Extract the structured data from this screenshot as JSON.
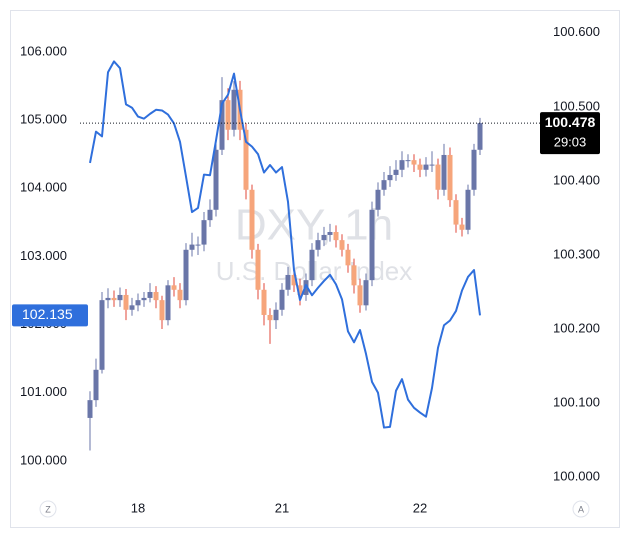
{
  "chart_data": {
    "type": "candlestick",
    "watermark": {
      "title": "DXY, 1h",
      "subtitle": "U.S. Dollar Index"
    },
    "corner_buttons": [
      "Z",
      "A"
    ],
    "grid": false,
    "categories": [
      null,
      null,
      null,
      null,
      null,
      null,
      null,
      null,
      "18",
      null,
      null,
      null,
      null,
      null,
      null,
      null,
      null,
      null,
      null,
      null,
      null,
      null,
      null,
      null,
      null,
      null,
      null,
      null,
      null,
      null,
      null,
      null,
      "21",
      null,
      null,
      null,
      null,
      null,
      null,
      null,
      null,
      null,
      null,
      null,
      null,
      null,
      null,
      null,
      null,
      null,
      null,
      null,
      null,
      null,
      null,
      "22",
      null,
      null,
      null,
      null,
      null,
      null,
      null,
      null,
      null,
      null
    ],
    "ylim": [
      99.545,
      106.584
    ],
    "yticks": [
      {
        "value": 100,
        "label": "100.000"
      },
      {
        "value": 101,
        "label": "101.000"
      },
      {
        "value": 102,
        "label": "102.000"
      },
      {
        "value": 103,
        "label": "103.000"
      },
      {
        "value": 104,
        "label": "104.000"
      },
      {
        "value": 105,
        "label": "105.000"
      },
      {
        "value": 106,
        "label": "106.000"
      }
    ],
    "y2lim": [
      99.98,
      100.628
    ],
    "y2ticks": [
      {
        "value": 100,
        "label": "100.000"
      },
      {
        "value": 100.1,
        "label": "100.100"
      },
      {
        "value": 100.2,
        "label": "100.200"
      },
      {
        "value": 100.3,
        "label": "100.300"
      },
      {
        "value": 100.4,
        "label": "100.400"
      },
      {
        "value": 100.5,
        "label": "100.500"
      },
      {
        "value": 100.6,
        "label": "100.600"
      }
    ],
    "last_price_label": {
      "value": 100.478,
      "label": "100.478"
    },
    "countdown": "29:03",
    "series": [
      {
        "type": "candlestick",
        "axis": "y2",
        "up_color": "#6a76a8",
        "down_color": "#f6a57b",
        "down_wick_color": "#e0473a",
        "open": [
          100.08,
          100.104,
          100.145,
          100.239,
          100.242,
          100.239,
          100.246,
          100.226,
          100.232,
          100.239,
          100.242,
          100.25,
          100.239,
          100.212,
          100.259,
          100.253,
          100.239,
          100.307,
          100.314,
          100.314,
          100.347,
          100.361,
          100.442,
          100.509,
          100.469,
          100.523,
          100.469,
          100.388,
          100.307,
          100.253,
          100.219,
          100.212,
          100.226,
          100.253,
          100.273,
          100.259,
          100.246,
          100.266,
          100.307,
          100.32,
          100.327,
          100.331,
          100.32,
          100.307,
          100.286,
          100.259,
          100.232,
          100.266,
          100.361,
          100.388,
          100.401,
          100.408,
          100.415,
          100.428,
          100.428,
          100.422,
          100.415,
          100.422,
          100.422,
          100.388,
          100.435,
          100.374,
          100.341,
          100.334,
          100.388,
          100.442
        ],
        "high": [
          100.116,
          100.16,
          100.25,
          100.255,
          100.252,
          100.256,
          100.254,
          100.242,
          100.248,
          100.25,
          100.262,
          100.258,
          100.245,
          100.266,
          100.27,
          100.262,
          100.316,
          100.33,
          100.325,
          100.358,
          100.375,
          100.455,
          100.54,
          100.525,
          100.535,
          100.535,
          100.478,
          100.395,
          100.315,
          100.262,
          100.228,
          100.236,
          100.262,
          100.284,
          100.282,
          100.268,
          100.275,
          100.316,
          100.33,
          100.338,
          100.342,
          100.34,
          100.328,
          100.315,
          100.295,
          100.268,
          100.275,
          100.372,
          100.398,
          100.412,
          100.42,
          100.428,
          100.44,
          100.436,
          100.436,
          100.43,
          100.432,
          100.44,
          100.43,
          100.45,
          100.445,
          100.382,
          100.35,
          100.395,
          100.45,
          100.485
        ],
        "low": [
          100.036,
          100.095,
          100.14,
          100.228,
          100.23,
          100.23,
          100.212,
          100.218,
          100.224,
          100.23,
          100.236,
          100.228,
          100.2,
          100.205,
          100.244,
          100.228,
          100.232,
          100.298,
          100.3,
          100.305,
          100.338,
          100.352,
          100.435,
          100.455,
          100.46,
          100.455,
          100.375,
          100.295,
          100.24,
          100.205,
          100.18,
          100.2,
          100.218,
          100.245,
          100.25,
          100.232,
          100.238,
          100.258,
          100.298,
          100.312,
          100.318,
          100.31,
          100.298,
          100.276,
          100.248,
          100.222,
          100.225,
          100.258,
          100.352,
          100.38,
          100.392,
          100.4,
          100.405,
          100.418,
          100.412,
          100.405,
          100.406,
          100.412,
          100.375,
          100.38,
          100.365,
          100.33,
          100.325,
          100.328,
          100.38,
          100.435
        ],
        "close": [
          100.104,
          100.145,
          100.239,
          100.242,
          100.239,
          100.246,
          100.226,
          100.232,
          100.239,
          100.242,
          100.25,
          100.239,
          100.212,
          100.259,
          100.253,
          100.239,
          100.307,
          100.314,
          100.314,
          100.347,
          100.361,
          100.442,
          100.509,
          100.469,
          100.523,
          100.469,
          100.388,
          100.307,
          100.253,
          100.219,
          100.212,
          100.226,
          100.253,
          100.273,
          100.259,
          100.246,
          100.266,
          100.307,
          100.32,
          100.327,
          100.331,
          100.32,
          100.307,
          100.286,
          100.259,
          100.232,
          100.266,
          100.361,
          100.388,
          100.401,
          100.408,
          100.415,
          100.428,
          100.428,
          100.422,
          100.415,
          100.422,
          100.422,
          100.388,
          100.435,
          100.374,
          100.341,
          100.334,
          100.388,
          100.442,
          100.478
        ]
      },
      {
        "type": "line",
        "axis": "y",
        "color": "#2f6fdc",
        "values": [
          104.37,
          104.83,
          104.76,
          105.7,
          105.86,
          105.76,
          105.23,
          105.18,
          105.05,
          105.02,
          105.09,
          105.15,
          105.14,
          105.08,
          104.95,
          104.68,
          104.17,
          103.65,
          103.71,
          104.2,
          104.19,
          104.7,
          105.24,
          105.37,
          105.68,
          105.15,
          104.68,
          104.61,
          104.5,
          104.23,
          104.34,
          104.23,
          104.31,
          103.8,
          102.8,
          102.36,
          102.58,
          102.43,
          102.54,
          102.64,
          102.73,
          102.59,
          102.37,
          101.9,
          101.74,
          101.92,
          101.57,
          101.16,
          101.0,
          100.49,
          100.5,
          101.03,
          101.2,
          100.9,
          100.78,
          100.71,
          100.65,
          101.07,
          101.66,
          101.99,
          102.06,
          102.2,
          102.5,
          102.7,
          102.8,
          102.135
        ],
        "last_label": {
          "value": 102.135,
          "label": "102.135"
        }
      }
    ]
  }
}
